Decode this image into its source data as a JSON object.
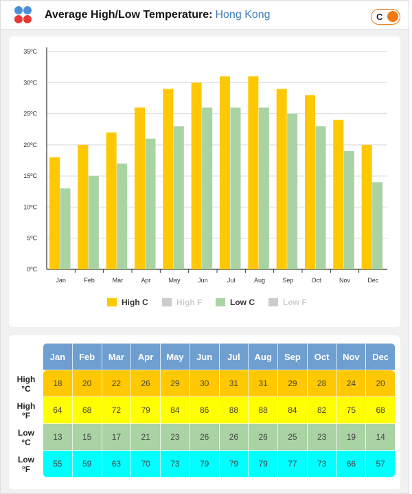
{
  "header": {
    "title": "Average High/Low Temperature:",
    "city": "Hong Kong",
    "unit_toggle_label": "C"
  },
  "colors": {
    "high_c": "#ffc800",
    "high_f": "#ffff00",
    "low_c": "#a9d3a3",
    "low_f": "#00ffff",
    "legend_disabled": "#cccccc",
    "header_blue": "#6e9fd0",
    "toggle_orange": "#f07a10"
  },
  "chart_data": {
    "type": "bar",
    "categories": [
      "Jan",
      "Feb",
      "Mar",
      "Apr",
      "May",
      "Jun",
      "Jul",
      "Aug",
      "Sep",
      "Oct",
      "Nov",
      "Dec"
    ],
    "series": [
      {
        "name": "High C",
        "values": [
          18,
          20,
          22,
          26,
          29,
          30,
          31,
          31,
          29,
          28,
          24,
          20
        ],
        "color": "#ffc800",
        "visible": true
      },
      {
        "name": "High F",
        "values": [
          64,
          68,
          72,
          79,
          84,
          86,
          88,
          88,
          84,
          82,
          75,
          68
        ],
        "color": "#cccccc",
        "visible": false
      },
      {
        "name": "Low C",
        "values": [
          13,
          15,
          17,
          21,
          23,
          26,
          26,
          26,
          25,
          23,
          19,
          14
        ],
        "color": "#a9d3a3",
        "visible": true
      },
      {
        "name": "Low F",
        "values": [
          55,
          59,
          63,
          70,
          73,
          79,
          79,
          79,
          77,
          73,
          66,
          57
        ],
        "color": "#cccccc",
        "visible": false
      }
    ],
    "yticks": [
      "0ºC",
      "5ºC",
      "10ºC",
      "15ºC",
      "20ºC",
      "25ºC",
      "30ºC",
      "35ºC"
    ],
    "ylim": [
      0,
      35
    ],
    "grid": true,
    "legend_position": "bottom"
  },
  "table": {
    "months": [
      "Jan",
      "Feb",
      "Mar",
      "Apr",
      "May",
      "Jun",
      "Jul",
      "Aug",
      "Sep",
      "Oct",
      "Nov",
      "Dec"
    ],
    "rows": [
      {
        "key": "highc",
        "label1": "High",
        "label2": "°C",
        "values": [
          "18",
          "20",
          "22",
          "26",
          "29",
          "30",
          "31",
          "31",
          "29",
          "28",
          "24",
          "20"
        ]
      },
      {
        "key": "highf",
        "label1": "High",
        "label2": "°F",
        "values": [
          "64",
          "68",
          "72",
          "79",
          "84",
          "86",
          "88",
          "88",
          "84",
          "82",
          "75",
          "68"
        ]
      },
      {
        "key": "lowc",
        "label1": "Low",
        "label2": "°C",
        "values": [
          "13",
          "15",
          "17",
          "21",
          "23",
          "26",
          "26",
          "26",
          "25",
          "23",
          "19",
          "14"
        ]
      },
      {
        "key": "lowf",
        "label1": "Low",
        "label2": "°F",
        "values": [
          "55",
          "59",
          "63",
          "70",
          "73",
          "79",
          "79",
          "79",
          "77",
          "73",
          "66",
          "57"
        ]
      }
    ]
  }
}
